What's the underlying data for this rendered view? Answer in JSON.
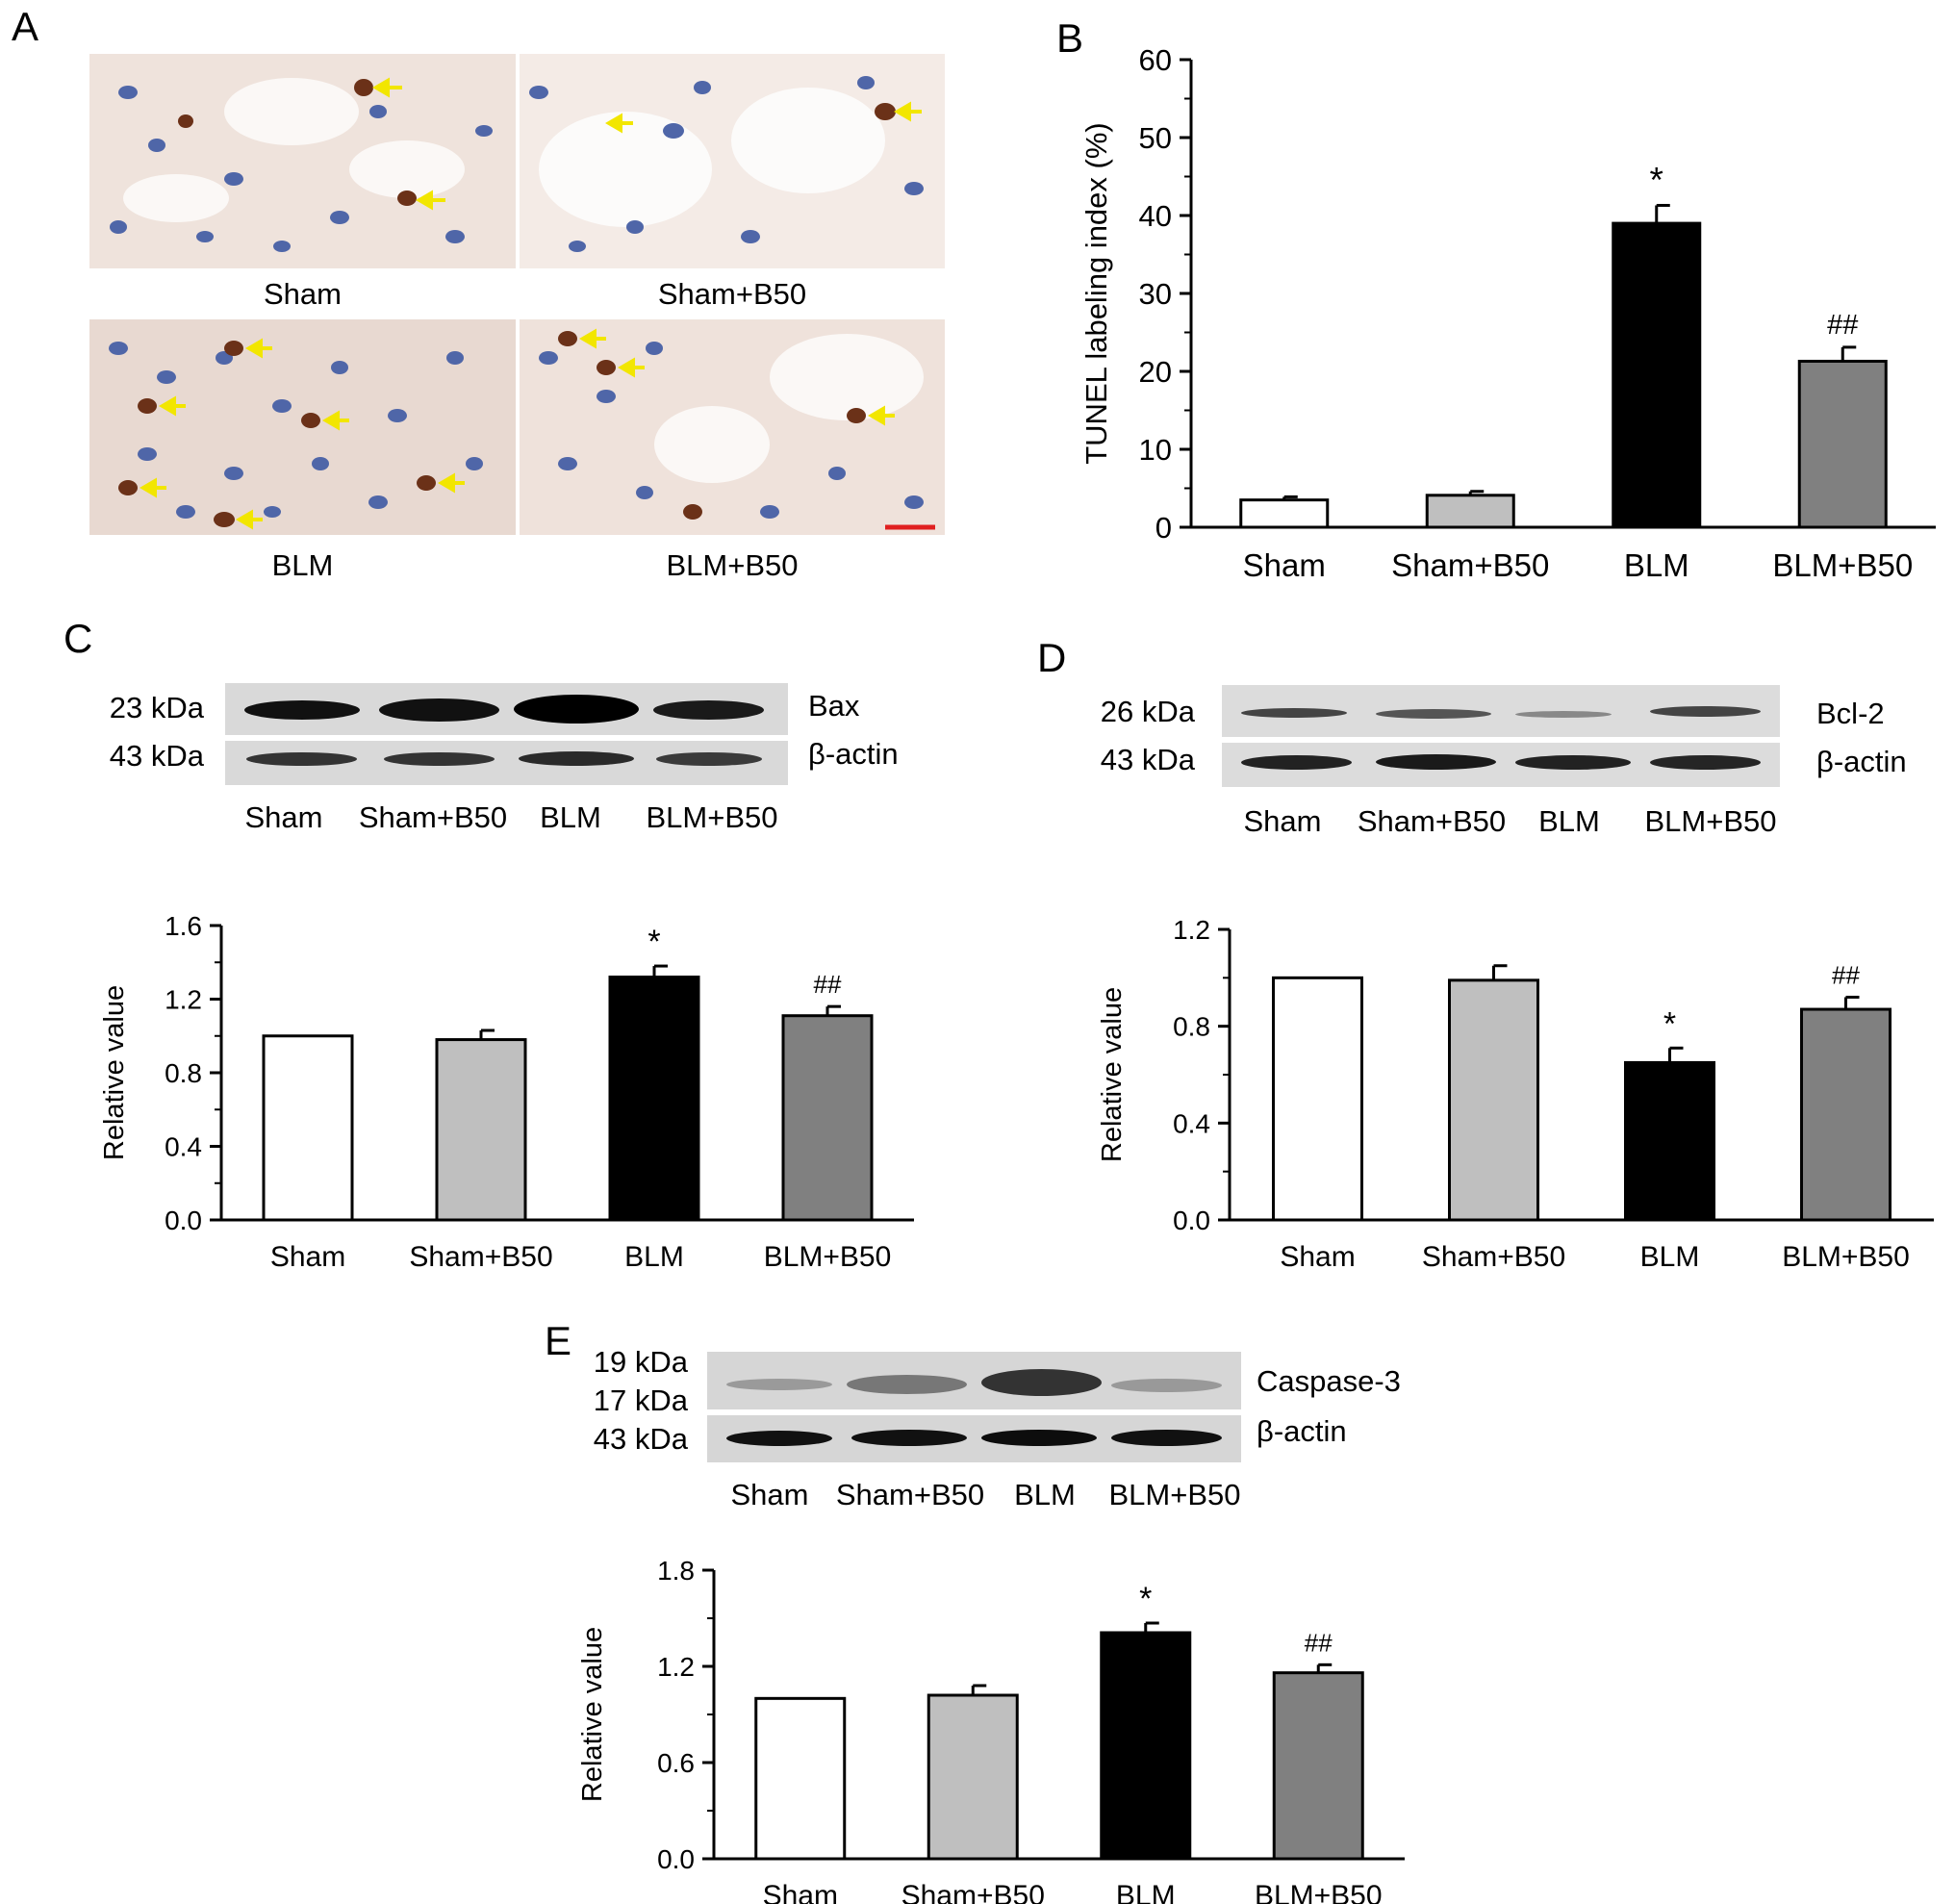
{
  "panel_letters": {
    "a": "A",
    "b": "B",
    "c": "C",
    "d": "D",
    "e": "E"
  },
  "micrographs": {
    "captions": [
      "Sham",
      "Sham+B50",
      "BLM",
      "BLM+B50"
    ],
    "arrow_color": "#f2e600",
    "scale_bar_color": "#e02020"
  },
  "blots": [
    {
      "id": "C",
      "target": "Bax",
      "target_kda": "23 kDa",
      "control": "β-actin",
      "control_kda": "43 kDa",
      "lanes": [
        "Sham",
        "Sham+B50",
        "BLM",
        "BLM+B50"
      ]
    },
    {
      "id": "D",
      "target": "Bcl-2",
      "target_kda": "26 kDa",
      "control": "β-actin",
      "control_kda": "43 kDa",
      "lanes": [
        "Sham",
        "Sham+B50",
        "BLM",
        "BLM+B50"
      ]
    },
    {
      "id": "E",
      "target": "Caspase-3",
      "target_kda": "19 kDa",
      "target_kda_2": "17 kDa",
      "control": "β-actin",
      "control_kda": "43 kDa",
      "lanes": [
        "Sham",
        "Sham+B50",
        "BLM",
        "BLM+B50"
      ]
    }
  ],
  "chart_data": [
    {
      "id": "B",
      "type": "bar",
      "categories": [
        "Sham",
        "Sham+B50",
        "BLM",
        "BLM+B50"
      ],
      "values": [
        3.5,
        4.1,
        39.0,
        21.3
      ],
      "errors": [
        0.4,
        0.5,
        2.3,
        1.8
      ],
      "annotations": [
        "",
        "",
        "*",
        "##"
      ],
      "ylabel": "TUNEL labeling index (%)",
      "xlabel": "",
      "ylim": [
        0,
        60
      ],
      "yticks": [
        "0",
        "10",
        "20",
        "30",
        "40",
        "50",
        "60"
      ],
      "colors": [
        "#ffffff",
        "#bfbfbf",
        "#000000",
        "#808080"
      ]
    },
    {
      "id": "C",
      "type": "bar",
      "categories": [
        "Sham",
        "Sham+B50",
        "BLM",
        "BLM+B50"
      ],
      "values": [
        1.0,
        0.98,
        1.32,
        1.11
      ],
      "errors": [
        0.0,
        0.05,
        0.06,
        0.05
      ],
      "annotations": [
        "",
        "",
        "*",
        "##"
      ],
      "ylabel": "Relative value",
      "xlabel": "",
      "ylim": [
        0,
        1.6
      ],
      "yticks": [
        "0.0",
        "0.4",
        "0.8",
        "1.2",
        "1.6"
      ],
      "colors": [
        "#ffffff",
        "#bfbfbf",
        "#000000",
        "#808080"
      ]
    },
    {
      "id": "D",
      "type": "bar",
      "categories": [
        "Sham",
        "Sham+B50",
        "BLM",
        "BLM+B50"
      ],
      "values": [
        1.0,
        0.99,
        0.65,
        0.87
      ],
      "errors": [
        0.0,
        0.06,
        0.06,
        0.05
      ],
      "annotations": [
        "",
        "",
        "*",
        "##"
      ],
      "ylabel": "Relative value",
      "xlabel": "",
      "ylim": [
        0,
        1.2
      ],
      "yticks": [
        "0.0",
        "0.4",
        "0.8",
        "1.2"
      ],
      "colors": [
        "#ffffff",
        "#bfbfbf",
        "#000000",
        "#808080"
      ]
    },
    {
      "id": "E",
      "type": "bar",
      "categories": [
        "Sham",
        "Sham+B50",
        "BLM",
        "BLM+B50"
      ],
      "values": [
        1.0,
        1.02,
        1.41,
        1.16
      ],
      "errors": [
        0.0,
        0.06,
        0.06,
        0.05
      ],
      "annotations": [
        "",
        "",
        "*",
        "##"
      ],
      "ylabel": "Relative value",
      "xlabel": "",
      "ylim": [
        0,
        1.8
      ],
      "yticks": [
        "0.0",
        "0.6",
        "1.2",
        "1.8"
      ],
      "colors": [
        "#ffffff",
        "#bfbfbf",
        "#000000",
        "#808080"
      ]
    }
  ]
}
